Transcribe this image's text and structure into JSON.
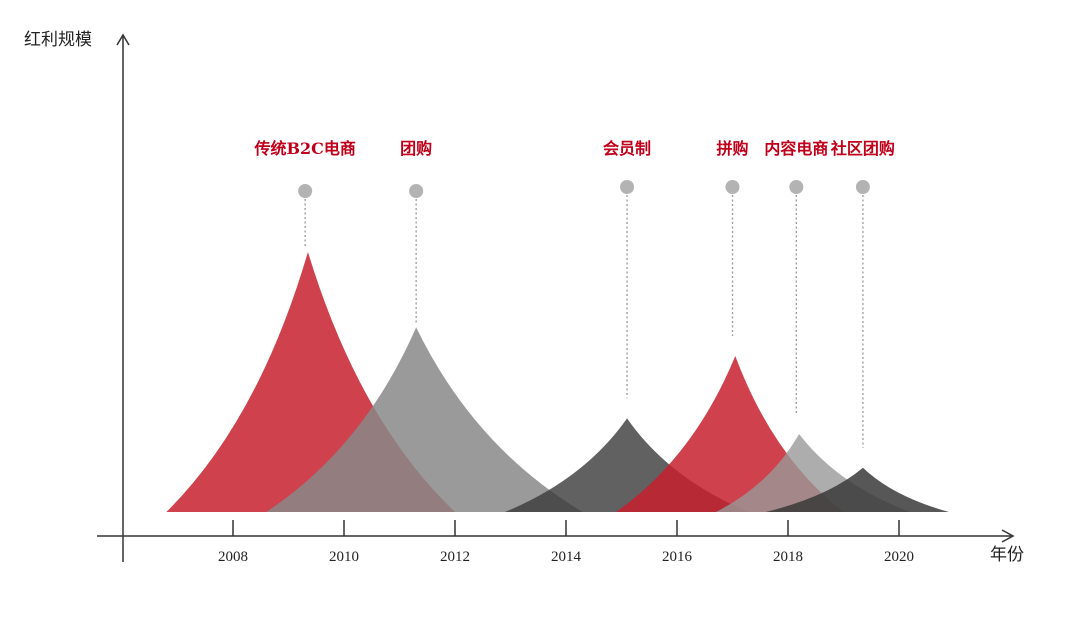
{
  "chart_data": {
    "type": "area",
    "title": "",
    "xlabel": "年份",
    "ylabel": "红利规模",
    "x_ticks": [
      2008,
      2010,
      2012,
      2014,
      2016,
      2018,
      2020
    ],
    "xlim": [
      2006.0,
      2022.0
    ],
    "ylim": [
      0,
      100
    ],
    "grid": false,
    "legend": "none",
    "series": [
      {
        "name": "传统B2C电商",
        "start": 2006.8,
        "peak": 2009.35,
        "end": 2012.0,
        "height": 100,
        "color": "#c8202f",
        "opacity": 0.85
      },
      {
        "name": "团购",
        "start": 2008.6,
        "peak": 2011.3,
        "end": 2014.3,
        "height": 71,
        "color": "#888888",
        "opacity": 0.85
      },
      {
        "name": "会员制",
        "start": 2012.9,
        "peak": 2015.1,
        "end": 2017.3,
        "height": 36,
        "color": "#3a3a3a",
        "opacity": 0.8
      },
      {
        "name": "拼购",
        "start": 2014.9,
        "peak": 2017.05,
        "end": 2019.0,
        "height": 60,
        "color": "#c8202f",
        "opacity": 0.85
      },
      {
        "name": "内容电商",
        "start": 2016.7,
        "peak": 2018.2,
        "end": 2020.2,
        "height": 30,
        "color": "#999999",
        "opacity": 0.8
      },
      {
        "name": "社区团购",
        "start": 2017.6,
        "peak": 2019.35,
        "end": 2020.9,
        "height": 17,
        "color": "#3a3a3a",
        "opacity": 0.85
      }
    ],
    "markers": [
      {
        "series": "传统B2C电商",
        "x": 2009.3
      },
      {
        "series": "团购",
        "x": 2011.3
      },
      {
        "series": "会员制",
        "x": 2015.1
      },
      {
        "series": "拼购",
        "x": 2017.0
      },
      {
        "series": "内容电商",
        "x": 2018.15
      },
      {
        "series": "社区团购",
        "x": 2019.35
      }
    ],
    "colors": {
      "label": "#c0001a",
      "marker": "#b3b3b3",
      "axis": "#333333"
    }
  }
}
